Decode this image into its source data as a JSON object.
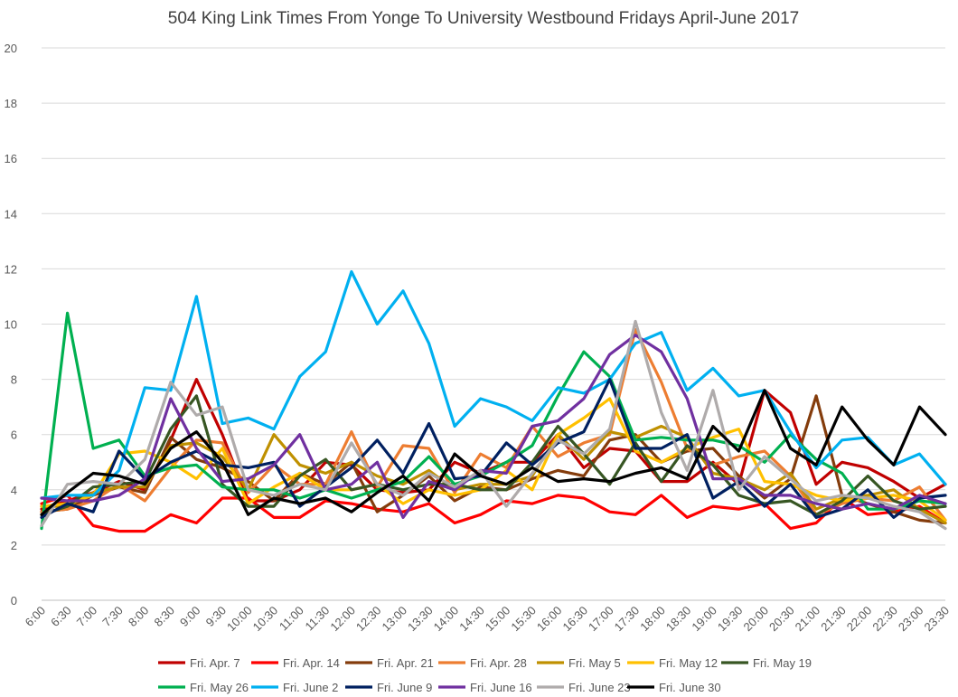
{
  "chart_data": {
    "type": "line",
    "title": "504 King Link Times From Yonge To University Westbound Fridays April-June 2017",
    "xlabel": "",
    "ylabel": "",
    "ylim": [
      0,
      20
    ],
    "yticks": [
      0,
      2,
      4,
      6,
      8,
      10,
      12,
      14,
      16,
      18,
      20
    ],
    "grid": true,
    "legend_position": "bottom",
    "categories": [
      "6:00",
      "6:30",
      "7:00",
      "7:30",
      "8:00",
      "8:30",
      "9:00",
      "9:30",
      "10:00",
      "10:30",
      "11:00",
      "11:30",
      "12:00",
      "12:30",
      "13:00",
      "13:30",
      "14:00",
      "14:30",
      "15:00",
      "15:30",
      "16:00",
      "16:30",
      "17:00",
      "17:30",
      "18:00",
      "18:30",
      "19:00",
      "19:30",
      "20:00",
      "20:30",
      "21:00",
      "21:30",
      "22:00",
      "22:30",
      "23:00",
      "23:30"
    ],
    "series": [
      {
        "name": "Fri. Apr. 7",
        "color": "#c00000",
        "values": [
          3.3,
          3.6,
          3.9,
          4.3,
          4.0,
          5.8,
          8.0,
          6.0,
          3.6,
          3.6,
          4.0,
          5.0,
          4.9,
          4.0,
          3.9,
          4.0,
          5.0,
          4.6,
          5.0,
          5.0,
          6.0,
          4.8,
          5.5,
          5.4,
          4.3,
          4.3,
          5.0,
          4.2,
          7.6,
          6.8,
          4.2,
          5.0,
          4.8,
          4.3,
          3.7,
          4.2
        ]
      },
      {
        "name": "Fri. Apr. 14",
        "color": "#ff0000",
        "values": [
          3.5,
          3.8,
          2.7,
          2.5,
          2.5,
          3.1,
          2.8,
          3.7,
          3.7,
          3.0,
          3.0,
          3.6,
          3.5,
          3.3,
          3.2,
          3.5,
          2.8,
          3.1,
          3.6,
          3.5,
          3.8,
          3.7,
          3.2,
          3.1,
          3.8,
          3.0,
          3.4,
          3.3,
          3.5,
          2.6,
          2.8,
          3.7,
          3.1,
          3.2,
          3.4,
          2.8
        ]
      },
      {
        "name": "Fri. Apr. 21",
        "color": "#843c0c",
        "values": [
          3.2,
          3.3,
          3.8,
          4.1,
          3.9,
          5.9,
          5.1,
          4.8,
          4.3,
          3.6,
          4.6,
          4.2,
          5.0,
          3.2,
          3.8,
          4.5,
          3.6,
          4.1,
          4.0,
          4.4,
          4.7,
          4.5,
          5.8,
          6.0,
          5.0,
          5.4,
          5.5,
          4.5,
          3.7,
          4.4,
          7.4,
          3.8,
          3.5,
          3.2,
          2.9,
          2.8
        ]
      },
      {
        "name": "Fri. Apr. 28",
        "color": "#ed7d31",
        "values": [
          3.2,
          3.3,
          3.6,
          4.2,
          3.6,
          4.8,
          5.8,
          5.7,
          3.9,
          4.9,
          4.2,
          4.2,
          6.1,
          4.1,
          5.6,
          5.5,
          3.9,
          5.3,
          4.8,
          6.3,
          5.2,
          5.7,
          6.0,
          9.8,
          7.9,
          5.5,
          4.9,
          5.2,
          5.4,
          4.5,
          3.1,
          3.5,
          3.7,
          3.6,
          4.1,
          2.9
        ]
      },
      {
        "name": "Fri. May 5",
        "color": "#bf9000",
        "values": [
          3.4,
          3.4,
          3.9,
          4.1,
          4.1,
          5.6,
          5.7,
          5.2,
          4.0,
          6.0,
          4.9,
          4.6,
          5.0,
          4.5,
          4.2,
          4.7,
          4.0,
          4.2,
          4.2,
          4.5,
          6.0,
          5.1,
          6.1,
          5.9,
          6.3,
          5.9,
          4.6,
          4.4,
          4.0,
          4.6,
          3.3,
          3.7,
          3.8,
          4.0,
          3.3,
          2.8
        ]
      },
      {
        "name": "Fri. May 12",
        "color": "#ffc000",
        "values": [
          3.4,
          3.5,
          3.8,
          5.3,
          5.4,
          5.0,
          4.4,
          5.5,
          3.5,
          4.1,
          4.6,
          4.0,
          4.0,
          4.2,
          3.5,
          4.0,
          3.8,
          4.0,
          4.7,
          4.0,
          6.0,
          6.6,
          7.3,
          5.4,
          5.0,
          5.5,
          5.9,
          6.2,
          4.3,
          4.2,
          3.8,
          3.6,
          3.7,
          3.8,
          3.6,
          2.9
        ]
      },
      {
        "name": "Fri. May 19",
        "color": "#375623",
        "values": [
          3.1,
          3.4,
          4.1,
          4.2,
          4.3,
          6.2,
          7.4,
          4.2,
          3.4,
          3.4,
          4.5,
          5.1,
          4.0,
          4.2,
          4.0,
          4.2,
          4.2,
          4.0,
          4.0,
          5.0,
          6.3,
          5.3,
          4.2,
          5.7,
          4.3,
          5.6,
          4.9,
          3.8,
          3.5,
          3.6,
          3.1,
          3.6,
          4.5,
          3.6,
          3.3,
          3.4
        ]
      },
      {
        "name": "Fri. May 26",
        "color": "#00b050",
        "values": [
          2.6,
          10.4,
          5.5,
          5.8,
          4.5,
          4.8,
          4.9,
          4.1,
          4.0,
          4.0,
          3.7,
          4.0,
          3.7,
          4.0,
          4.3,
          5.2,
          4.2,
          4.5,
          5.0,
          5.6,
          7.4,
          9.0,
          8.1,
          5.8,
          5.9,
          5.8,
          5.8,
          5.6,
          5.0,
          6.0,
          5.1,
          4.6,
          3.3,
          3.3,
          3.6,
          3.5
        ]
      },
      {
        "name": "Fri. June 2",
        "color": "#00b0f0",
        "values": [
          3.7,
          3.8,
          3.8,
          4.7,
          7.7,
          7.6,
          11.0,
          6.4,
          6.6,
          6.2,
          8.1,
          9.0,
          11.9,
          10.0,
          11.2,
          9.3,
          6.3,
          7.3,
          7.0,
          6.5,
          7.7,
          7.5,
          8.0,
          9.3,
          9.7,
          7.6,
          8.4,
          7.4,
          7.6,
          6.1,
          4.8,
          5.8,
          5.9,
          4.9,
          5.3,
          4.2
        ]
      },
      {
        "name": "Fri. June 9",
        "color": "#002060",
        "values": [
          3.0,
          3.5,
          3.2,
          5.4,
          4.4,
          5.0,
          5.4,
          4.9,
          4.8,
          5.0,
          3.4,
          4.1,
          4.8,
          5.8,
          4.6,
          6.4,
          4.4,
          4.5,
          5.7,
          4.9,
          5.7,
          6.1,
          8.0,
          5.5,
          5.5,
          6.0,
          3.7,
          4.3,
          3.4,
          4.2,
          3.0,
          3.3,
          4.0,
          3.0,
          3.7,
          3.8
        ]
      },
      {
        "name": "Fri. June 16",
        "color": "#7030a0",
        "values": [
          3.7,
          3.6,
          3.6,
          3.8,
          4.4,
          7.3,
          5.5,
          4.3,
          4.4,
          4.9,
          6.0,
          4.0,
          4.2,
          5.0,
          3.0,
          4.3,
          4.0,
          4.7,
          4.6,
          6.3,
          6.5,
          7.3,
          8.9,
          9.6,
          9.0,
          7.3,
          4.4,
          4.4,
          3.8,
          3.8,
          3.5,
          3.3,
          3.5,
          3.3,
          3.8,
          3.5
        ]
      },
      {
        "name": "Fri. June 23",
        "color": "#afabab",
        "values": [
          2.7,
          4.2,
          4.3,
          4.2,
          5.1,
          7.9,
          6.7,
          7.0,
          4.0,
          3.8,
          4.2,
          4.0,
          5.7,
          4.2,
          3.8,
          4.6,
          4.1,
          4.7,
          3.4,
          4.6,
          5.8,
          5.3,
          6.2,
          10.1,
          6.8,
          4.7,
          7.6,
          4.0,
          5.2,
          4.4,
          3.6,
          3.8,
          3.7,
          3.4,
          3.2,
          2.6
        ]
      },
      {
        "name": "Fri. June 30",
        "color": "#000000",
        "values": [
          3.1,
          3.9,
          4.6,
          4.5,
          4.2,
          5.5,
          6.1,
          5.0,
          3.1,
          3.7,
          3.5,
          3.7,
          3.2,
          3.9,
          4.5,
          3.6,
          5.3,
          4.5,
          4.2,
          4.8,
          4.3,
          4.4,
          4.3,
          4.6,
          4.8,
          4.4,
          6.3,
          5.4,
          7.6,
          5.5,
          4.9,
          7.0,
          5.8,
          4.9,
          7.0,
          6.0
        ]
      }
    ]
  }
}
